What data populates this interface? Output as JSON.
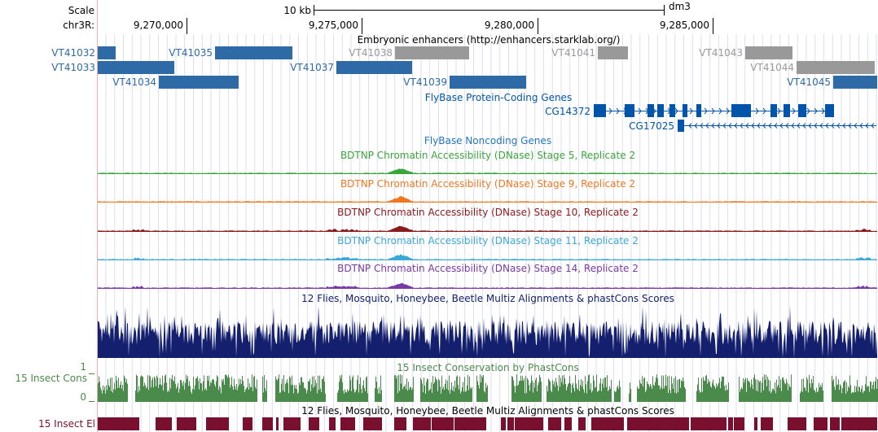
{
  "header": {
    "scale_label": "Scale",
    "chrom_label": "chr3R:",
    "scale_bar_label": "10 kb",
    "assembly": "dm3",
    "positions": [
      "9,270,000",
      "9,275,000",
      "9,280,000",
      "9,285,000"
    ]
  },
  "tracks": {
    "enhancers": {
      "title": "Embryonic enhancers (http://enhancers.starklab.org/)",
      "items": [
        {
          "label": "VT41032",
          "color": "#2e6aa6"
        },
        {
          "label": "VT41033",
          "color": "#2e6aa6"
        },
        {
          "label": "VT41034",
          "color": "#2e6aa6"
        },
        {
          "label": "VT41035",
          "color": "#2e6aa6"
        },
        {
          "label": "VT41037",
          "color": "#2e6aa6"
        },
        {
          "label": "VT41038",
          "color": "#999999"
        },
        {
          "label": "VT41039",
          "color": "#2e6aa6"
        },
        {
          "label": "VT41041",
          "color": "#999999"
        },
        {
          "label": "VT41043",
          "color": "#999999"
        },
        {
          "label": "VT41044",
          "color": "#999999"
        },
        {
          "label": "VT41045",
          "color": "#2e6aa6"
        }
      ]
    },
    "coding_genes": {
      "title": "FlyBase Protein-Coding Genes",
      "genes": [
        "CG14372",
        "CG17025"
      ],
      "color": "#0055aa"
    },
    "noncoding_genes": {
      "title": "FlyBase Noncoding Genes",
      "color": "#2277bb"
    },
    "dnase": [
      {
        "title": "BDTNP Chromatin Accessibility (DNase) Stage 5, Replicate 2",
        "color": "#3aa63a"
      },
      {
        "title": "BDTNP Chromatin Accessibility (DNase) Stage 9, Replicate 2",
        "color": "#f07820"
      },
      {
        "title": "BDTNP Chromatin Accessibility (DNase) Stage 10, Replicate 2",
        "color": "#8b1a1a"
      },
      {
        "title": "BDTNP Chromatin Accessibility (DNase) Stage 11, Replicate 2",
        "color": "#3ca8d8"
      },
      {
        "title": "BDTNP Chromatin Accessibility (DNase) Stage 14, Replicate 2",
        "color": "#7a3aa6"
      }
    ],
    "multiz": {
      "title": "12 Flies, Mosquito, Honeybee, Beetle Multiz Alignments & phastCons Scores",
      "color": "#14206e"
    },
    "cons": {
      "title": "15 Insect Conservation by PhastCons",
      "side_label": "15 Insect Cons",
      "axis_max": "1",
      "axis_min": "0",
      "color": "#4a8a4a"
    },
    "elements": {
      "title": "12 Flies, Mosquito, Honeybee, Beetle Multiz Alignments & phastCons Scores",
      "side_label": "15 Insect El",
      "color": "#7a1030"
    }
  }
}
